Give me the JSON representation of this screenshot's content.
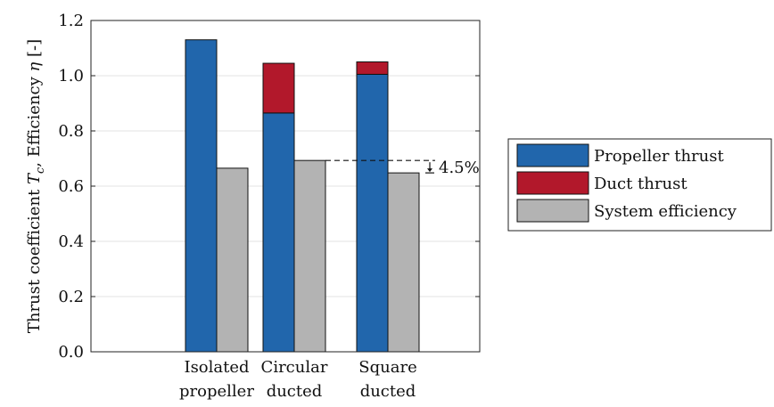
{
  "chart_data": {
    "type": "bar",
    "categories": [
      [
        "Isolated",
        "propeller"
      ],
      [
        "Circular",
        "ducted"
      ],
      [
        "Square",
        "ducted"
      ]
    ],
    "ylabel_parts": {
      "prefix": "Thrust coefficient ",
      "symbol_T": "T",
      "subscript_c": "c",
      "middle": ", Efficiency ",
      "symbol_eta": "η",
      "suffix": " [-]"
    },
    "ylim": [
      0,
      1.2
    ],
    "yticks": [
      0.0,
      0.2,
      0.4,
      0.6,
      0.8,
      1.0,
      1.2
    ],
    "ytick_labels": [
      "0.0",
      "0.2",
      "0.4",
      "0.6",
      "0.8",
      "1.0",
      "1.2"
    ],
    "grid": true,
    "legend_position": "right",
    "series": [
      {
        "name": "Propeller thrust",
        "values": [
          1.13,
          0.865,
          1.005
        ],
        "color": "#2166AC",
        "stack": "thrust"
      },
      {
        "name": "Duct thrust",
        "values": [
          0.0,
          0.18,
          0.045
        ],
        "color": "#B2182B",
        "stack": "thrust"
      },
      {
        "name": "System efficiency",
        "values": [
          0.665,
          0.693,
          0.648
        ],
        "color": "#B3B3B3",
        "stack": "efficiency"
      }
    ],
    "annotation": {
      "text": "4.5%",
      "from_category": 1,
      "to_category": 2,
      "upper_value": 0.693,
      "lower_value": 0.648
    }
  }
}
